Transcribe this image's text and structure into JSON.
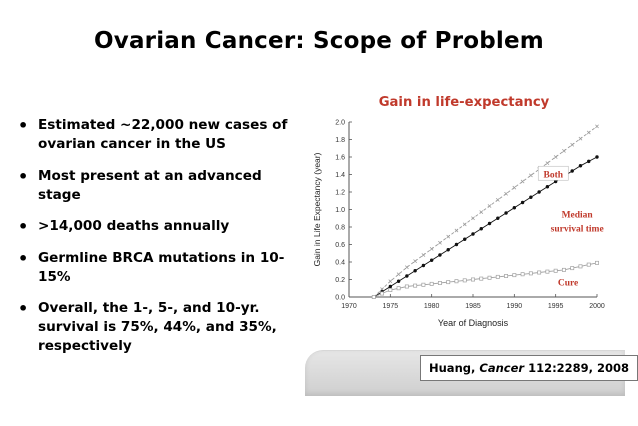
{
  "slide": {
    "title": "Ovarian Cancer: Scope of Problem",
    "bullets": [
      "Estimated ~22,000 new cases of ovarian cancer in the US",
      "Most present at an advanced stage",
      ">14,000 deaths annually",
      "Germline BRCA mutations in 10-15%",
      "Overall, the 1-, 5-, and 10-yr. survival is 75%, 44%, and 35%, respectively"
    ]
  },
  "citation": {
    "author": "Huang, ",
    "journal": "Cancer",
    "ref": " 112:2289, 2008"
  },
  "colors": {
    "heading_red": "#c0392b",
    "label_red": "#c0392b",
    "axis": "#555555",
    "series_both": "#9a9a9a",
    "series_median": "#111111",
    "series_cure": "#a0a0a0"
  },
  "chart_data": {
    "type": "line",
    "title": "Gain in life-expectancy",
    "xlabel": "Year of Diagnosis",
    "ylabel": "Gain in Life Expectancy (year)",
    "xlim": [
      1970,
      2000
    ],
    "ylim": [
      0.0,
      2.0
    ],
    "xticks": [
      1970,
      1975,
      1980,
      1985,
      1990,
      1995,
      2000
    ],
    "xtick_labels": [
      "1970",
      "1975",
      "1980",
      "1985",
      "1990",
      "1995",
      "2000"
    ],
    "yticks": [
      0.0,
      0.2,
      0.4,
      0.6,
      0.8,
      1.0,
      1.2,
      1.4,
      1.6,
      1.8,
      2.0
    ],
    "ytick_labels": [
      "0.0",
      "0.2",
      "0.4",
      "0.6",
      "0.8",
      "1.0",
      "1.2",
      "1.4",
      "1.6",
      "1.8",
      "2.0"
    ],
    "series": [
      {
        "name": "Both",
        "x": [
          1973,
          1974,
          1975,
          1976,
          1977,
          1978,
          1979,
          1980,
          1981,
          1982,
          1983,
          1984,
          1985,
          1986,
          1987,
          1988,
          1989,
          1990,
          1991,
          1992,
          1993,
          1994,
          1995,
          1996,
          1997,
          1998,
          1999,
          2000
        ],
        "values": [
          0.0,
          0.09,
          0.18,
          0.26,
          0.34,
          0.41,
          0.48,
          0.55,
          0.62,
          0.69,
          0.76,
          0.83,
          0.9,
          0.97,
          1.04,
          1.11,
          1.18,
          1.25,
          1.32,
          1.39,
          1.46,
          1.53,
          1.6,
          1.67,
          1.74,
          1.81,
          1.88,
          1.95
        ]
      },
      {
        "name": "Median survival time",
        "x": [
          1973,
          1974,
          1975,
          1976,
          1977,
          1978,
          1979,
          1980,
          1981,
          1982,
          1983,
          1984,
          1985,
          1986,
          1987,
          1988,
          1989,
          1990,
          1991,
          1992,
          1993,
          1994,
          1995,
          1996,
          1997,
          1998,
          1999,
          2000
        ],
        "values": [
          0.0,
          0.06,
          0.12,
          0.18,
          0.24,
          0.3,
          0.36,
          0.42,
          0.48,
          0.54,
          0.6,
          0.66,
          0.72,
          0.78,
          0.84,
          0.9,
          0.96,
          1.02,
          1.08,
          1.14,
          1.2,
          1.26,
          1.32,
          1.38,
          1.44,
          1.5,
          1.55,
          1.6
        ]
      },
      {
        "name": "Cure",
        "x": [
          1973,
          1974,
          1975,
          1976,
          1977,
          1978,
          1979,
          1980,
          1981,
          1982,
          1983,
          1984,
          1985,
          1986,
          1987,
          1988,
          1989,
          1990,
          1991,
          1992,
          1993,
          1994,
          1995,
          1996,
          1997,
          1998,
          1999,
          2000
        ],
        "values": [
          0.0,
          0.04,
          0.08,
          0.1,
          0.12,
          0.13,
          0.14,
          0.15,
          0.16,
          0.17,
          0.18,
          0.19,
          0.2,
          0.21,
          0.22,
          0.23,
          0.24,
          0.25,
          0.26,
          0.27,
          0.28,
          0.29,
          0.3,
          0.31,
          0.33,
          0.35,
          0.37,
          0.39
        ]
      }
    ],
    "annotations": [
      {
        "text": "Both",
        "series": "Both"
      },
      {
        "text": "Median",
        "series": "Median survival time"
      },
      {
        "text": "survival time",
        "series": "Median survival time"
      },
      {
        "text": "Cure",
        "series": "Cure"
      }
    ]
  }
}
